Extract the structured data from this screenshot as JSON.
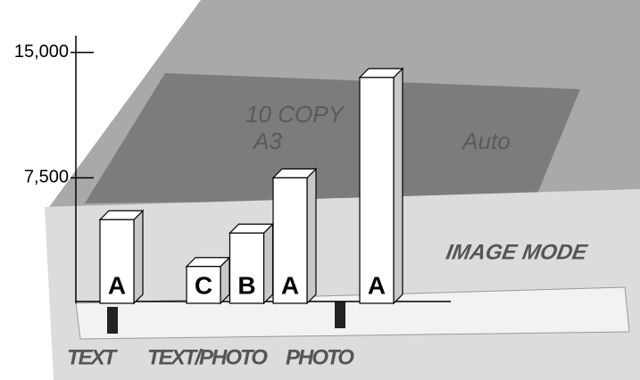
{
  "chart_data": {
    "type": "bar3d",
    "categories": [
      "A",
      null,
      "C",
      "B",
      "A",
      null,
      "A"
    ],
    "values": [
      5000,
      null,
      2200,
      4200,
      7500,
      null,
      13500
    ],
    "color": "#ffffff",
    "side_color": "#c8c8c8",
    "ylim": [
      0,
      16000
    ],
    "yticks": [
      {
        "value": 7500,
        "label": "7,500"
      },
      {
        "value": 15000,
        "label": "15,000"
      }
    ],
    "panel_title": "IMAGE MODE",
    "panel_labels": [
      "TEXT",
      "TEXT/PHOTO",
      "PHOTO"
    ],
    "display_text": [
      "10 COPY",
      "A3",
      "Auto"
    ]
  }
}
